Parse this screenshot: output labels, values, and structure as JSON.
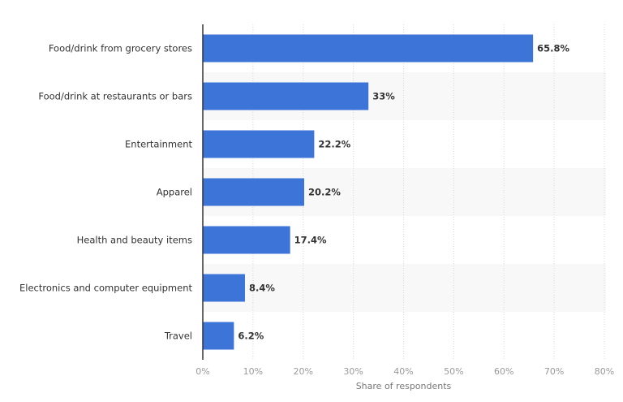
{
  "chart_data": {
    "type": "bar",
    "orientation": "horizontal",
    "categories": [
      "Food/drink from grocery stores",
      "Food/drink at restaurants or bars",
      "Entertainment",
      "Apparel",
      "Health and beauty items",
      "Electronics and computer equipment",
      "Travel"
    ],
    "values": [
      65.8,
      33,
      22.2,
      20.2,
      17.4,
      8.4,
      6.2
    ],
    "data_labels": [
      "65.8%",
      "33%",
      "22.2%",
      "20.2%",
      "17.4%",
      "8.4%",
      "6.2%"
    ],
    "title": "",
    "xlabel": "Share of respondents",
    "ylabel": "",
    "xlim": [
      0,
      80
    ],
    "ticks": [
      0,
      10,
      20,
      30,
      40,
      50,
      60,
      70,
      80
    ],
    "tick_labels": [
      "0%",
      "10%",
      "20%",
      "30%",
      "40%",
      "50%",
      "60%",
      "70%",
      "80%"
    ],
    "grid": true,
    "legend": "none",
    "colors": {
      "bar": "#3d74d8",
      "band": "#f8f8f8",
      "grid": "#d8d8d8",
      "axis": "#333333",
      "label": "#333333",
      "tick": "#999999"
    }
  }
}
